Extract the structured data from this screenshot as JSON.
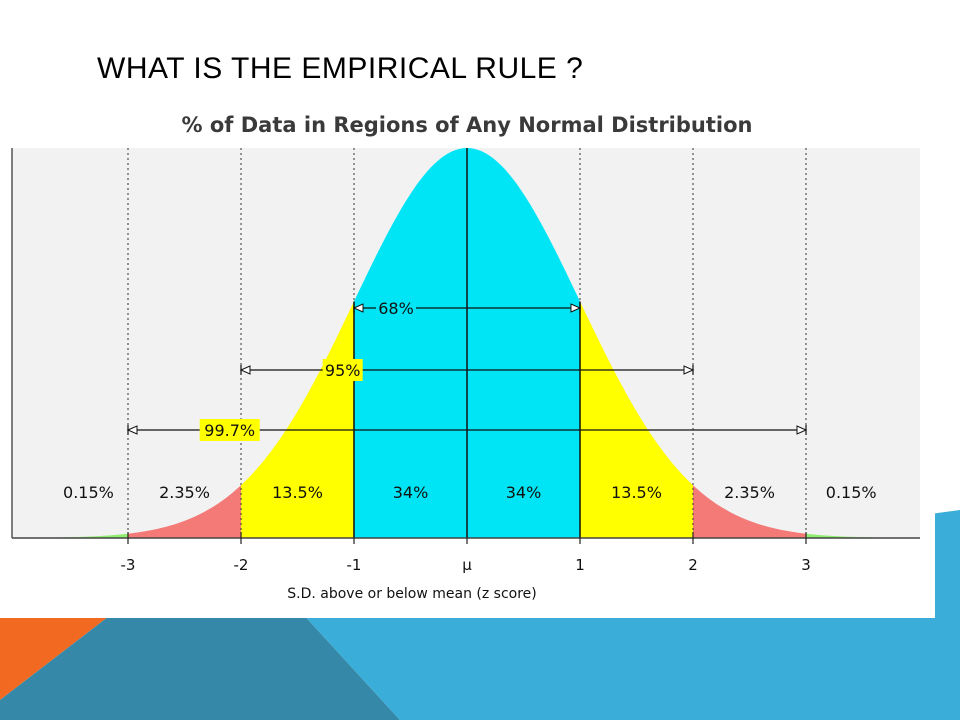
{
  "slide": {
    "title": "WHAT IS THE EMPIRICAL RULE ?"
  },
  "colors": {
    "center_band": "#00e5f5",
    "second_band": "#ffff00",
    "third_band": "#f47a78",
    "tail_band": "#90ee70",
    "plot_background": "#f2f2f2",
    "accent_orange": "#f26a21",
    "accent_blue": "#3aaed8",
    "accent_dark_blue": "#3688a8"
  },
  "chart_data": {
    "type": "area",
    "title": "% of Data in Regions of Any Normal Distribution",
    "xlabel": "S.D. above or below mean (z score)",
    "ylabel": "",
    "xlim": [
      -3.8,
      3.95
    ],
    "x_ticks": [
      {
        "value": -3,
        "label": "-3"
      },
      {
        "value": -2,
        "label": "-2"
      },
      {
        "value": -1,
        "label": "-1"
      },
      {
        "value": 0,
        "label": "μ"
      },
      {
        "value": 1,
        "label": "1"
      },
      {
        "value": 2,
        "label": "2"
      },
      {
        "value": 3,
        "label": "3"
      }
    ],
    "curve": "standard normal density",
    "regions": [
      {
        "from": -3.8,
        "to": -3,
        "label": "0.15%",
        "label_at": -3.35,
        "color_key": "tail_band"
      },
      {
        "from": -3,
        "to": -2,
        "label": "2.35%",
        "label_at": -2.5,
        "color_key": "third_band"
      },
      {
        "from": -2,
        "to": -1,
        "label": "13.5%",
        "label_at": -1.5,
        "color_key": "second_band"
      },
      {
        "from": -1,
        "to": 0,
        "label": "34%",
        "label_at": -0.5,
        "color_key": "center_band"
      },
      {
        "from": 0,
        "to": 1,
        "label": "34%",
        "label_at": 0.5,
        "color_key": "center_band"
      },
      {
        "from": 1,
        "to": 2,
        "label": "13.5%",
        "label_at": 1.5,
        "color_key": "second_band"
      },
      {
        "from": 2,
        "to": 3,
        "label": "2.35%",
        "label_at": 2.5,
        "color_key": "third_band"
      },
      {
        "from": 3,
        "to": 3.95,
        "label": "0.15%",
        "label_at": 3.4,
        "color_key": "tail_band"
      }
    ],
    "ranges": [
      {
        "from": -1,
        "to": 1,
        "label": "68%"
      },
      {
        "from": -2,
        "to": 2,
        "label": "95%"
      },
      {
        "from": -3,
        "to": 3,
        "label": "99.7%"
      }
    ],
    "grid": "dotted vertical lines at ±1, ±2, ±3 SD; solid line at mean"
  }
}
